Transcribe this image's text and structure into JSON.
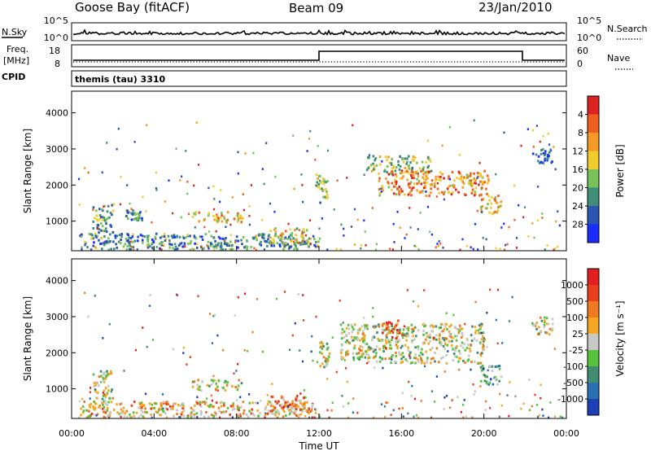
{
  "header": {
    "station": "Goose Bay (fitACF)",
    "beam": "Beam 09",
    "date": "23/Jan/2010"
  },
  "noise_panel": {
    "left_label": "N.Sky",
    "right_label": "N.Search",
    "left_ticks": [
      "10^5",
      "10^0"
    ],
    "right_ticks": [
      "10^5",
      "10^0"
    ]
  },
  "freq_panel": {
    "left_label_line1": "Freq.",
    "left_label_line2": "[MHz]",
    "right_label": "Nave",
    "left_ticks": [
      "18",
      "8"
    ],
    "right_ticks": [
      "60",
      "0"
    ]
  },
  "cpid": {
    "label": "CPID",
    "value": "themis (tau) 3310"
  },
  "chart_data": [
    {
      "type": "heatmap",
      "title": "",
      "xlabel": "Time UT",
      "ylabel": "Slant Range [km]",
      "x_ticks": [
        "00:00",
        "04:00",
        "08:00",
        "12:00",
        "16:00",
        "20:00",
        "00:00"
      ],
      "y_ticks": [
        "1000",
        "2000",
        "3000",
        "4000"
      ],
      "xlim_hours": [
        0,
        24
      ],
      "ylim_km": [
        180,
        4600
      ],
      "colorbar": {
        "label": "Power [dB]",
        "ticks": [
          "4",
          "8",
          "12",
          "16",
          "20",
          "24",
          "28"
        ],
        "colors": [
          "#1a2cff",
          "#2a55b0",
          "#3f8f78",
          "#78c25a",
          "#f0cc2c",
          "#f59a25",
          "#ee5e1d",
          "#dd2222"
        ]
      },
      "blobs": [
        {
          "t0": 1.0,
          "t1": 2.0,
          "r0": 600,
          "r1": 1500,
          "level": 0.35
        },
        {
          "t0": 2.6,
          "t1": 3.4,
          "r0": 1000,
          "r1": 1300,
          "level": 0.3
        },
        {
          "t0": 5.8,
          "t1": 8.3,
          "r0": 950,
          "r1": 1250,
          "level": 0.6
        },
        {
          "t0": 0.3,
          "t1": 12.0,
          "r0": 200,
          "r1": 650,
          "level": 0.3
        },
        {
          "t0": 9.5,
          "t1": 11.6,
          "r0": 350,
          "r1": 800,
          "level": 0.55
        },
        {
          "t0": 11.8,
          "t1": 12.4,
          "r0": 1500,
          "r1": 2300,
          "level": 0.45
        },
        {
          "t0": 14.2,
          "t1": 17.4,
          "r0": 2300,
          "r1": 2800,
          "level": 0.45
        },
        {
          "t0": 14.8,
          "t1": 20.2,
          "r0": 1700,
          "r1": 2400,
          "level": 0.7
        },
        {
          "t0": 19.8,
          "t1": 20.8,
          "r0": 1200,
          "r1": 1700,
          "level": 0.65
        },
        {
          "t0": 22.3,
          "t1": 23.3,
          "r0": 2600,
          "r1": 3000,
          "level": 0.2
        }
      ]
    },
    {
      "type": "heatmap",
      "title": "",
      "xlabel": "Time UT",
      "ylabel": "Slant Range [km]",
      "x_ticks": [
        "00:00",
        "04:00",
        "08:00",
        "12:00",
        "16:00",
        "20:00",
        "00:00"
      ],
      "y_ticks": [
        "1000",
        "2000",
        "3000",
        "4000"
      ],
      "xlim_hours": [
        0,
        24
      ],
      "ylim_km": [
        180,
        4600
      ],
      "colorbar": {
        "label": "Velocity [m s⁻¹]",
        "ticks": [
          "1000",
          "500",
          "100",
          "25",
          "-25",
          "-100",
          "-500",
          "-1000"
        ],
        "colors": [
          "#1d3fb8",
          "#2a6fb2",
          "#3f8d6e",
          "#58c23c",
          "#c8c8c4",
          "#f5a623",
          "#f07a1f",
          "#e8401c",
          "#e21f1f"
        ]
      },
      "blobs": [
        {
          "t0": 1.0,
          "t1": 2.0,
          "r0": 600,
          "r1": 1500,
          "level": 0.5
        },
        {
          "t0": 5.8,
          "t1": 8.3,
          "r0": 950,
          "r1": 1250,
          "level": 0.5
        },
        {
          "t0": 0.3,
          "t1": 12.0,
          "r0": 200,
          "r1": 650,
          "level": 0.6
        },
        {
          "t0": 9.5,
          "t1": 11.6,
          "r0": 350,
          "r1": 800,
          "level": 0.7
        },
        {
          "t0": 12.0,
          "t1": 12.5,
          "r0": 1600,
          "r1": 2300,
          "level": 0.5
        },
        {
          "t0": 13.0,
          "t1": 20.0,
          "r0": 1700,
          "r1": 2800,
          "level": 0.5
        },
        {
          "t0": 15.0,
          "t1": 16.0,
          "r0": 2400,
          "r1": 2900,
          "level": 0.82
        },
        {
          "t0": 19.8,
          "t1": 20.8,
          "r0": 1100,
          "r1": 1700,
          "level": 0.3
        },
        {
          "t0": 22.3,
          "t1": 23.3,
          "r0": 2500,
          "r1": 3000,
          "level": 0.5
        }
      ]
    }
  ]
}
